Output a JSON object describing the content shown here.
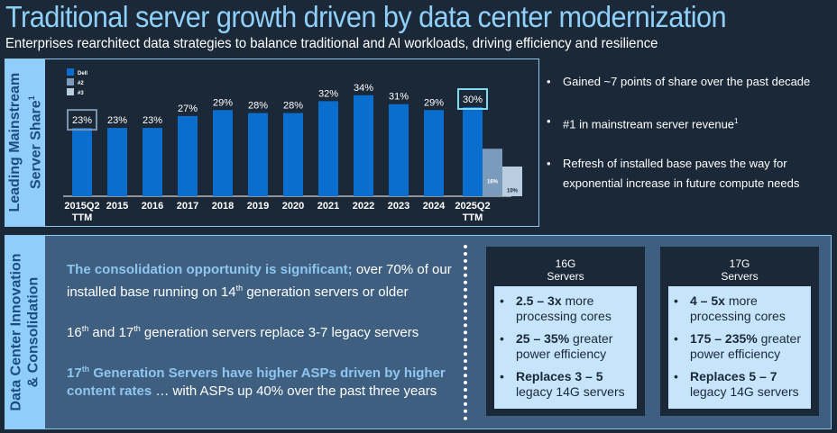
{
  "header": {
    "title": "Traditional server growth driven by data center modernization",
    "subtitle": "Enterprises rearchitect data strategies to balance traditional and AI workloads, driving efficiency and resilience"
  },
  "top_panel": {
    "side_label_line1": "Leading Mainstream",
    "side_label_line2": "Server Share",
    "side_label_sup": "1",
    "bullets": [
      {
        "text": "Gained ~7 points of share over the past decade",
        "sup": ""
      },
      {
        "text": "#1 in mainstream server revenue",
        "sup": "1"
      },
      {
        "text": "Refresh of installed base paves the way for exponential increase in future compute needs",
        "sup": ""
      }
    ]
  },
  "chart_data": {
    "type": "bar",
    "title": "Leading Mainstream Server Share",
    "xlabel": "",
    "ylabel": "",
    "ylim": [
      0,
      40
    ],
    "grid": false,
    "legend_position": "top-left",
    "legend": [
      {
        "name": "Dell",
        "color": "#0a6ecf"
      },
      {
        "name": "#2",
        "color": "#7b9bbd"
      },
      {
        "name": "#3",
        "color": "#b9cde0"
      }
    ],
    "categories": [
      {
        "line1": "2015Q2",
        "line2": "TTM"
      },
      {
        "line1": "2015",
        "line2": ""
      },
      {
        "line1": "2016",
        "line2": ""
      },
      {
        "line1": "2017",
        "line2": ""
      },
      {
        "line1": "2018",
        "line2": ""
      },
      {
        "line1": "2019",
        "line2": ""
      },
      {
        "line1": "2020",
        "line2": ""
      },
      {
        "line1": "2021",
        "line2": ""
      },
      {
        "line1": "2022",
        "line2": ""
      },
      {
        "line1": "2023",
        "line2": ""
      },
      {
        "line1": "2024",
        "line2": ""
      },
      {
        "line1": "2025Q2",
        "line2": "TTM"
      }
    ],
    "series": [
      {
        "name": "Dell",
        "values": [
          23,
          23,
          23,
          27,
          29,
          28,
          28,
          32,
          34,
          31,
          29,
          30
        ],
        "labels": [
          "23%",
          "23%",
          "23%",
          "27%",
          "29%",
          "28%",
          "28%",
          "32%",
          "34%",
          "31%",
          "29%",
          "30%"
        ]
      },
      {
        "name": "#2",
        "values": [
          null,
          null,
          null,
          null,
          null,
          null,
          null,
          null,
          null,
          null,
          null,
          16
        ],
        "labels": [
          "",
          "",
          "",
          "",
          "",
          "",
          "",
          "",
          "",
          "",
          "",
          "16%"
        ]
      },
      {
        "name": "#3",
        "values": [
          null,
          null,
          null,
          null,
          null,
          null,
          null,
          null,
          null,
          null,
          null,
          10
        ],
        "labels": [
          "",
          "",
          "",
          "",
          "",
          "",
          "",
          "",
          "",
          "",
          "",
          "10%"
        ]
      }
    ],
    "highlights": [
      {
        "category_index": 0,
        "color": "#7b93ad"
      },
      {
        "category_index": 11,
        "color": "#7fdaf0"
      }
    ]
  },
  "bottom_panel": {
    "side_label_line1": "Data Center Innovation",
    "side_label_line2": "& Consolidation",
    "paragraphs": {
      "p1_highlight": "The consolidation opportunity is significant;",
      "p1_rest_a": " over 70% of our installed base running on 14",
      "p1_sup": "th",
      "p1_rest_b": " generation servers or older",
      "p2_a": "16",
      "p2_sup1": "th",
      "p2_b": " and 17",
      "p2_sup2": "th",
      "p2_c": " generation servers replace 3-7 legacy servers",
      "p3_highlight_a": "17",
      "p3_sup": "th",
      "p3_highlight_b": " Generation Servers have higher ASPs driven by higher content rates",
      "p3_rest": " … with ASPs up 40% over the past three years"
    },
    "cards": [
      {
        "title_line1": "16G",
        "title_line2": "Servers",
        "items": [
          {
            "bold": "2.5 – 3x",
            "rest": " more processing cores"
          },
          {
            "bold": "25 – 35%",
            "rest": " greater power efficiency"
          },
          {
            "bold": "Replaces 3 – 5",
            "rest": " legacy 14G servers"
          }
        ]
      },
      {
        "title_line1": "17G",
        "title_line2": "Servers",
        "items": [
          {
            "bold": "4 – 5x",
            "rest": " more processing cores"
          },
          {
            "bold": "175 – 235%",
            "rest": " greater power efficiency"
          },
          {
            "bold": "Replaces 5 – 7",
            "rest": " legacy 14G servers"
          }
        ]
      }
    ]
  }
}
